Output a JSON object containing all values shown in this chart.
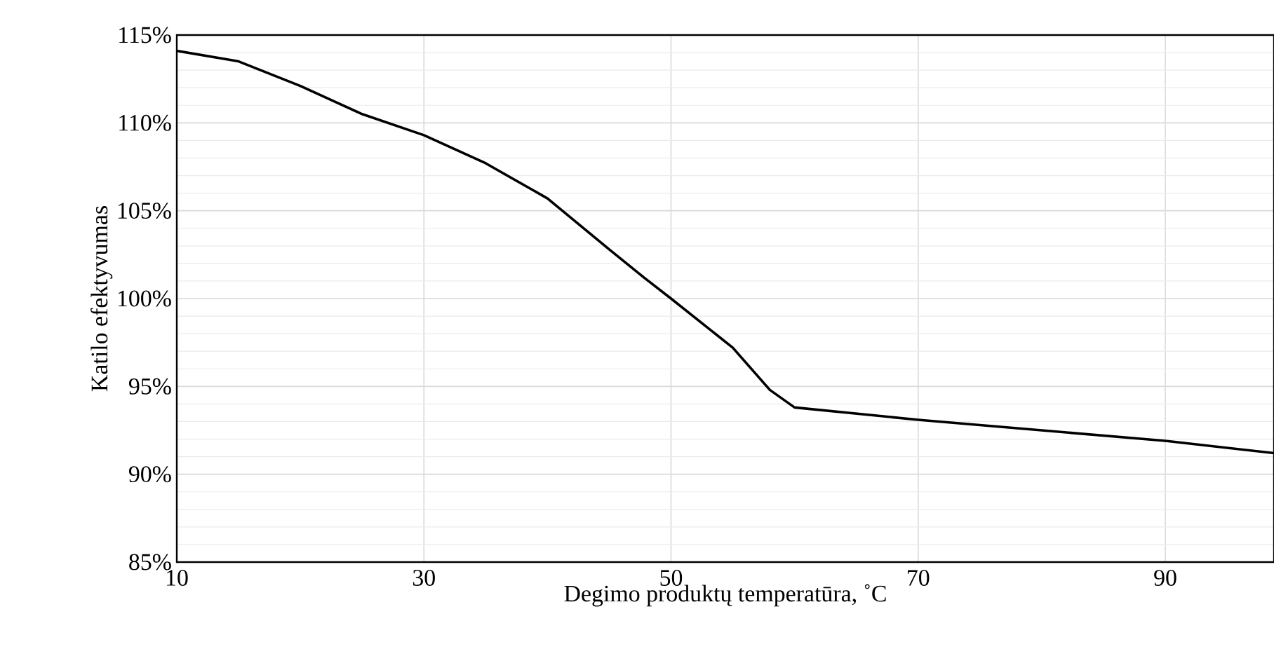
{
  "chart_data": {
    "type": "line",
    "xlabel": "Degimo produktų temperatūra, ˚C",
    "ylabel": "Katilo efektyvumas",
    "x": [
      10,
      15,
      20,
      25,
      30,
      35,
      40,
      45,
      47.8,
      50,
      55,
      58,
      60,
      70,
      80,
      90,
      98.8
    ],
    "series": [
      {
        "color": "#000000",
        "values": [
          114.1,
          113.5,
          112.1,
          110.5,
          109.3,
          107.7,
          105.7,
          102.8,
          101.2,
          100.0,
          97.2,
          94.8,
          93.8,
          93.1,
          92.5,
          91.9,
          91.2
        ]
      }
    ],
    "xlim": [
      10,
      98.8
    ],
    "xticks": [
      10,
      30,
      50,
      70,
      90
    ],
    "ylim": [
      85,
      115
    ],
    "yticks": [
      {
        "value": 85,
        "label": "85%"
      },
      {
        "value": 90,
        "label": "90%"
      },
      {
        "value": 95,
        "label": "95%"
      },
      {
        "value": 100,
        "label": "100%"
      },
      {
        "value": 105,
        "label": "105%"
      },
      {
        "value": 110,
        "label": "110%"
      },
      {
        "value": 115,
        "label": "115%"
      }
    ],
    "grid": true,
    "marker": "none",
    "line_style": "solid"
  }
}
